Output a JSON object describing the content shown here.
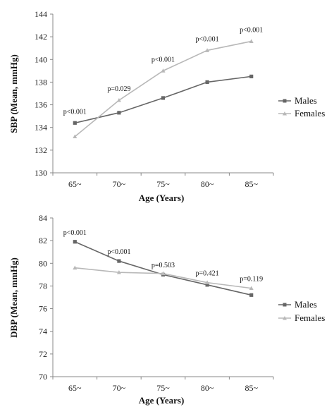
{
  "chart_data": [
    {
      "type": "line",
      "categories": [
        "65~",
        "70~",
        "75~",
        "80~",
        "85~"
      ],
      "xlabel": "Age (Years)",
      "ylabel": "SBP (Mean, mmHg)",
      "ylim": [
        130,
        144
      ],
      "yticks": [
        "130",
        "132",
        "134",
        "136",
        "138",
        "140",
        "142",
        "144"
      ],
      "series": [
        {
          "name": "Males",
          "values": [
            134.4,
            135.3,
            136.6,
            138.0,
            138.5
          ],
          "color": "#666666",
          "marker": "square"
        },
        {
          "name": "Females",
          "values": [
            133.2,
            136.4,
            139.0,
            140.8,
            141.6
          ],
          "color": "#b8b8b8",
          "marker": "triangle"
        }
      ],
      "annotations": [
        "p<0.001",
        "p=0.029",
        "p<0.001",
        "p<0.001",
        "p<0.001"
      ],
      "legend": "right",
      "grid": false
    },
    {
      "type": "line",
      "categories": [
        "65~",
        "70~",
        "75~",
        "80~",
        "85~"
      ],
      "xlabel": "Age (Years)",
      "ylabel": "DBP (Mean, mmHg)",
      "ylim": [
        70,
        84
      ],
      "yticks": [
        "70",
        "72",
        "74",
        "76",
        "78",
        "80",
        "82",
        "84"
      ],
      "series": [
        {
          "name": "Males",
          "values": [
            81.9,
            80.2,
            79.0,
            78.1,
            77.2
          ],
          "color": "#666666",
          "marker": "square"
        },
        {
          "name": "Females",
          "values": [
            79.6,
            79.2,
            79.1,
            78.3,
            77.8
          ],
          "color": "#b8b8b8",
          "marker": "triangle"
        }
      ],
      "annotations": [
        "p<0.001",
        "p<0.001",
        "p=0.503",
        "p=0.421",
        "p=0.119"
      ],
      "legend": "right",
      "grid": false
    }
  ]
}
